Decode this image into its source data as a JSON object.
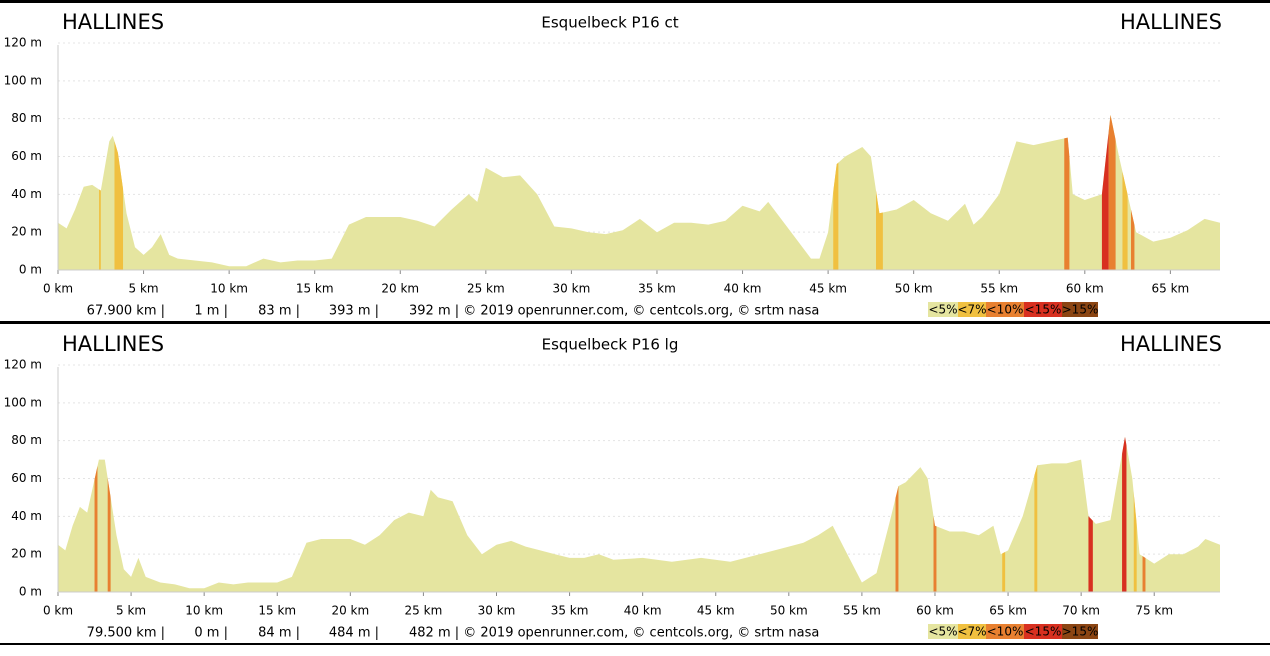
{
  "chart_data": [
    {
      "type": "area",
      "title": "Esquelbeck P16 ct",
      "start_label": "HALLINES",
      "end_label": "HALLINES",
      "color": "#e5e5a0",
      "xlim": [
        0,
        67.9
      ],
      "ylim": [
        0,
        120
      ],
      "xticks": [
        {
          "value": 0,
          "label": "0 km"
        },
        {
          "value": 5,
          "label": "5 km"
        },
        {
          "value": 10,
          "label": "10 km"
        },
        {
          "value": 15,
          "label": "15 km"
        },
        {
          "value": 20,
          "label": "20 km"
        },
        {
          "value": 25,
          "label": "25 km"
        },
        {
          "value": 30,
          "label": "30 km"
        },
        {
          "value": 35,
          "label": "35 km"
        },
        {
          "value": 40,
          "label": "40 km"
        },
        {
          "value": 45,
          "label": "45 km"
        },
        {
          "value": 50,
          "label": "50 km"
        },
        {
          "value": 55,
          "label": "55 km"
        },
        {
          "value": 60,
          "label": "60 km"
        },
        {
          "value": 65,
          "label": "65 km"
        }
      ],
      "yticks": [
        {
          "value": 0,
          "label": "0 m"
        },
        {
          "value": 20,
          "label": "20 m"
        },
        {
          "value": 40,
          "label": "40 m"
        },
        {
          "value": 60,
          "label": "60 m"
        },
        {
          "value": 80,
          "label": "80 m"
        },
        {
          "value": 100,
          "label": "100 m"
        },
        {
          "value": 120,
          "label": "120 m"
        }
      ],
      "x": [
        0,
        0.5,
        1,
        1.5,
        2,
        2.5,
        3,
        3.2,
        3.5,
        4,
        4.5,
        5,
        5.5,
        6,
        6.5,
        7,
        8,
        9,
        10,
        11,
        12,
        13,
        14,
        15,
        16,
        17,
        18,
        19,
        20,
        21,
        22,
        23,
        24,
        24.5,
        25,
        26,
        27,
        28,
        29,
        30,
        31,
        32,
        33,
        34,
        35,
        36,
        37,
        38,
        39,
        40,
        41,
        41.5,
        42,
        43,
        44,
        44.5,
        45,
        45.5,
        46,
        47,
        47.5,
        48,
        49,
        50,
        51,
        52,
        53,
        53.5,
        54,
        55,
        56,
        57,
        58,
        59,
        59.3,
        60,
        61,
        61.5,
        62,
        63,
        64,
        65,
        66,
        67,
        67.9
      ],
      "values": [
        25,
        22,
        32,
        44,
        45,
        42,
        68,
        71,
        62,
        30,
        12,
        8,
        12,
        19,
        8,
        6,
        5,
        4,
        2,
        2,
        6,
        4,
        5,
        5,
        6,
        24,
        28,
        28,
        28,
        26,
        23,
        32,
        40,
        36,
        54,
        49,
        50,
        40,
        23,
        22,
        20,
        19,
        21,
        27,
        20,
        25,
        25,
        24,
        26,
        34,
        31,
        36,
        30,
        18,
        6,
        6,
        20,
        56,
        60,
        65,
        60,
        30,
        32,
        37,
        30,
        26,
        35,
        24,
        28,
        40,
        68,
        66,
        68,
        70,
        40,
        37,
        40,
        82,
        60,
        20,
        15,
        17,
        21,
        27,
        25
      ],
      "steep": [
        {
          "from": 2.4,
          "to": 2.5,
          "color": "#f0c040"
        },
        {
          "from": 3.3,
          "to": 3.8,
          "color": "#f0c040"
        },
        {
          "from": 45.3,
          "to": 45.6,
          "color": "#f0c040"
        },
        {
          "from": 47.8,
          "to": 48.2,
          "color": "#f0c040"
        },
        {
          "from": 58.8,
          "to": 59.1,
          "color": "#e88030"
        },
        {
          "from": 61.0,
          "to": 61.4,
          "color": "#d83020"
        },
        {
          "from": 61.4,
          "to": 61.8,
          "color": "#e88030"
        },
        {
          "from": 62.2,
          "to": 62.5,
          "color": "#f0c040"
        },
        {
          "from": 62.7,
          "to": 62.9,
          "color": "#e88030"
        }
      ],
      "stats": [
        "67.900 km |",
        "1 m |",
        "83 m |",
        "393 m |",
        "392 m | © 2019 openrunner.com, © centcols.org, © srtm nasa"
      ],
      "legend": [
        {
          "label": "<5%",
          "color": "#e5e5a0"
        },
        {
          "label": "<7%",
          "color": "#f0c040"
        },
        {
          "label": "<10%",
          "color": "#e88030"
        },
        {
          "label": "<15%",
          "color": "#d83020"
        },
        {
          "label": ">15%",
          "color": "#8b4513"
        }
      ]
    },
    {
      "type": "area",
      "title": "Esquelbeck P16 lg",
      "start_label": "HALLINES",
      "end_label": "HALLINES",
      "color": "#e5e5a0",
      "xlim": [
        0,
        79.5
      ],
      "ylim": [
        0,
        120
      ],
      "xticks": [
        {
          "value": 0,
          "label": "0 km"
        },
        {
          "value": 5,
          "label": "5 km"
        },
        {
          "value": 10,
          "label": "10 km"
        },
        {
          "value": 15,
          "label": "15 km"
        },
        {
          "value": 20,
          "label": "20 km"
        },
        {
          "value": 25,
          "label": "25 km"
        },
        {
          "value": 30,
          "label": "30 km"
        },
        {
          "value": 35,
          "label": "35 km"
        },
        {
          "value": 40,
          "label": "40 km"
        },
        {
          "value": 45,
          "label": "45 km"
        },
        {
          "value": 50,
          "label": "50 km"
        },
        {
          "value": 55,
          "label": "55 km"
        },
        {
          "value": 60,
          "label": "60 km"
        },
        {
          "value": 65,
          "label": "65 km"
        },
        {
          "value": 70,
          "label": "70 km"
        },
        {
          "value": 75,
          "label": "75 km"
        }
      ],
      "yticks": [
        {
          "value": 0,
          "label": "0 m"
        },
        {
          "value": 20,
          "label": "20 m"
        },
        {
          "value": 40,
          "label": "40 m"
        },
        {
          "value": 60,
          "label": "60 m"
        },
        {
          "value": 80,
          "label": "80 m"
        },
        {
          "value": 100,
          "label": "100 m"
        },
        {
          "value": 120,
          "label": "120 m"
        }
      ],
      "x": [
        0,
        0.5,
        1,
        1.5,
        2,
        2.8,
        3.2,
        3.5,
        4,
        4.5,
        5,
        5.5,
        6,
        7,
        8,
        9,
        10,
        11,
        12,
        13,
        14,
        15,
        16,
        17,
        18,
        19,
        20,
        21,
        22,
        23,
        24,
        25,
        25.5,
        26,
        27,
        28,
        29,
        30,
        31,
        32,
        33,
        34,
        35,
        36,
        37,
        38,
        40,
        42,
        44,
        46,
        48,
        50,
        51,
        52,
        53,
        54,
        55,
        56,
        57,
        57.5,
        58,
        59,
        59.5,
        60,
        61,
        62,
        63,
        64,
        64.5,
        65,
        66,
        67,
        68,
        69,
        70,
        70.5,
        71,
        72,
        72.5,
        73,
        73.5,
        74,
        75,
        76,
        77,
        78,
        78.5,
        79.5
      ],
      "values": [
        25,
        22,
        35,
        45,
        42,
        70,
        70,
        55,
        30,
        12,
        8,
        18,
        8,
        5,
        4,
        2,
        2,
        5,
        4,
        5,
        5,
        5,
        8,
        26,
        28,
        28,
        28,
        25,
        30,
        38,
        42,
        40,
        54,
        50,
        48,
        30,
        20,
        25,
        27,
        24,
        22,
        20,
        18,
        18,
        20,
        17,
        18,
        16,
        18,
        16,
        20,
        24,
        26,
        30,
        35,
        20,
        5,
        10,
        40,
        56,
        58,
        66,
        60,
        35,
        32,
        32,
        30,
        35,
        20,
        22,
        40,
        67,
        68,
        68,
        70,
        40,
        36,
        38,
        60,
        82,
        60,
        20,
        15,
        20,
        20,
        24,
        28,
        25
      ],
      "steep": [
        {
          "from": 2.5,
          "to": 2.7,
          "color": "#e88030"
        },
        {
          "from": 3.4,
          "to": 3.6,
          "color": "#e88030"
        },
        {
          "from": 57.3,
          "to": 57.5,
          "color": "#e88030"
        },
        {
          "from": 59.9,
          "to": 60.1,
          "color": "#e88030"
        },
        {
          "from": 64.6,
          "to": 64.8,
          "color": "#f0c040"
        },
        {
          "from": 66.8,
          "to": 67.0,
          "color": "#f0c040"
        },
        {
          "from": 70.5,
          "to": 70.8,
          "color": "#d83020"
        },
        {
          "from": 72.8,
          "to": 73.1,
          "color": "#d83020"
        },
        {
          "from": 73.6,
          "to": 73.8,
          "color": "#f0c040"
        },
        {
          "from": 74.2,
          "to": 74.4,
          "color": "#e88030"
        }
      ],
      "stats": [
        "79.500 km |",
        "0 m |",
        "84 m |",
        "484 m |",
        "482 m | © 2019 openrunner.com, © centcols.org, © srtm nasa"
      ],
      "legend": [
        {
          "label": "<5%",
          "color": "#e5e5a0"
        },
        {
          "label": "<7%",
          "color": "#f0c040"
        },
        {
          "label": "<10%",
          "color": "#e88030"
        },
        {
          "label": "<15%",
          "color": "#d83020"
        },
        {
          "label": ">15%",
          "color": "#8b4513"
        }
      ]
    }
  ]
}
